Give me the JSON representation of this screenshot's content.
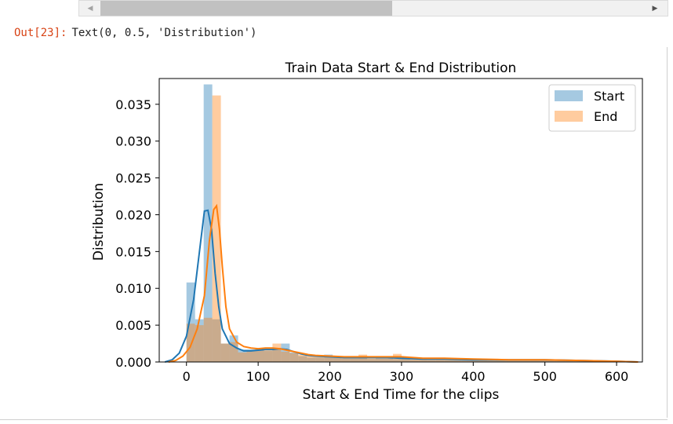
{
  "scrollbar": {
    "left_arrow": "◀",
    "right_arrow": "▶"
  },
  "output": {
    "prompt": "Out[23]:",
    "text": "Text(0, 0.5, 'Distribution')"
  },
  "chart_data": {
    "type": "bar",
    "title": "Train Data Start & End Distribution",
    "xlabel": "Start & End Time for the clips",
    "ylabel": "Distribution",
    "xlim": [
      -38,
      636
    ],
    "ylim": [
      0,
      0.0385
    ],
    "xticks": [
      0,
      100,
      200,
      300,
      400,
      500,
      600
    ],
    "xtick_labels": [
      "0",
      "100",
      "200",
      "300",
      "400",
      "500",
      "600"
    ],
    "yticks": [
      0,
      0.005,
      0.01,
      0.015,
      0.02,
      0.025,
      0.03,
      0.035
    ],
    "ytick_labels": [
      "0.000",
      "0.005",
      "0.010",
      "0.015",
      "0.020",
      "0.025",
      "0.030",
      "0.035"
    ],
    "legend_position": "top-right",
    "bin_width": 12,
    "series": [
      {
        "name": "Start",
        "color": "#1f77b4",
        "bin_starts": [
          0,
          12,
          24,
          36,
          48,
          60,
          72,
          84,
          96,
          108,
          120,
          132,
          144,
          156,
          168,
          180,
          192,
          204,
          216,
          228,
          240,
          252,
          264,
          276,
          288,
          300,
          312,
          324,
          336,
          348,
          360,
          372,
          384,
          396,
          408,
          420,
          432,
          444,
          456,
          468,
          480,
          492,
          504,
          516,
          528,
          540,
          552,
          564,
          576,
          588,
          600
        ],
        "values": [
          0.0108,
          0.0058,
          0.0377,
          0.0058,
          0.0025,
          0.0036,
          0.0017,
          0.0017,
          0.0017,
          0.0015,
          0.0018,
          0.0025,
          0.0013,
          0.0008,
          0.0006,
          0.0006,
          0.001,
          0.0007,
          0.0005,
          0.0005,
          0.0006,
          0.0004,
          0.0005,
          0.0005,
          0.0004,
          0.0005,
          0.0003,
          0.0003,
          0.0003,
          0.0003,
          0.0003,
          0.0003,
          0.0003,
          0.0003,
          0.0002,
          0.0002,
          0.0003,
          0.0002,
          0.0002,
          0.0002,
          0.0003,
          0.0002,
          0.0002,
          0.0002,
          0.0002,
          0.0002,
          0.0002,
          0.0002,
          0.0001,
          0.0001,
          0.0001
        ],
        "kde_x": [
          -30,
          -20,
          -10,
          0,
          10,
          20,
          25,
          30,
          35,
          40,
          45,
          50,
          60,
          70,
          80,
          90,
          100,
          110,
          120,
          130,
          140,
          150,
          160,
          170,
          180,
          200,
          220,
          250,
          280,
          300,
          330,
          360,
          400,
          450,
          500,
          550,
          600,
          630
        ],
        "kde_y": [
          0.0,
          0.0003,
          0.0012,
          0.0035,
          0.0085,
          0.0165,
          0.0205,
          0.0206,
          0.018,
          0.012,
          0.0075,
          0.0045,
          0.0025,
          0.0019,
          0.0015,
          0.0015,
          0.0016,
          0.0017,
          0.0017,
          0.0018,
          0.0017,
          0.0014,
          0.0011,
          0.0009,
          0.0008,
          0.0007,
          0.0006,
          0.0006,
          0.0006,
          0.0005,
          0.0004,
          0.0004,
          0.0003,
          0.0003,
          0.0003,
          0.0002,
          0.0001,
          0.0
        ]
      },
      {
        "name": "End",
        "color": "#ff7f0e",
        "bin_starts": [
          0,
          12,
          24,
          36,
          48,
          60,
          72,
          84,
          96,
          108,
          120,
          132,
          144,
          156,
          168,
          180,
          192,
          204,
          216,
          228,
          240,
          252,
          264,
          276,
          288,
          300,
          312,
          324,
          336,
          348,
          360,
          372,
          384,
          396,
          408,
          420,
          432,
          444,
          456,
          468,
          480,
          492,
          504,
          516,
          528,
          540,
          552,
          564,
          576,
          588,
          600
        ],
        "values": [
          0.0052,
          0.005,
          0.006,
          0.0362,
          0.0025,
          0.0027,
          0.0013,
          0.0016,
          0.0018,
          0.0016,
          0.0025,
          0.0014,
          0.0012,
          0.001,
          0.0009,
          0.0007,
          0.0007,
          0.0008,
          0.0006,
          0.0008,
          0.001,
          0.0006,
          0.0005,
          0.0005,
          0.0011,
          0.0005,
          0.0004,
          0.0004,
          0.0003,
          0.0004,
          0.0004,
          0.0003,
          0.0003,
          0.0002,
          0.0003,
          0.0002,
          0.0003,
          0.0002,
          0.0002,
          0.0003,
          0.0003,
          0.0002,
          0.0002,
          0.0002,
          0.0002,
          0.0002,
          0.0002,
          0.0002,
          0.0001,
          0.0001,
          0.0001
        ],
        "kde_x": [
          -25,
          -15,
          -5,
          5,
          15,
          25,
          32,
          38,
          42,
          46,
          50,
          55,
          60,
          70,
          80,
          90,
          100,
          110,
          120,
          130,
          140,
          150,
          160,
          170,
          180,
          200,
          220,
          250,
          280,
          300,
          330,
          360,
          400,
          450,
          500,
          550,
          600,
          630
        ],
        "kde_y": [
          0.0,
          0.0002,
          0.0008,
          0.002,
          0.0045,
          0.009,
          0.0165,
          0.0207,
          0.0212,
          0.018,
          0.013,
          0.0075,
          0.0045,
          0.0027,
          0.0021,
          0.0019,
          0.0018,
          0.0019,
          0.0019,
          0.0018,
          0.0016,
          0.0014,
          0.0012,
          0.001,
          0.0009,
          0.0008,
          0.0007,
          0.0007,
          0.0007,
          0.0007,
          0.0005,
          0.0005,
          0.0004,
          0.0003,
          0.0003,
          0.0002,
          0.0001,
          0.0
        ]
      }
    ]
  }
}
